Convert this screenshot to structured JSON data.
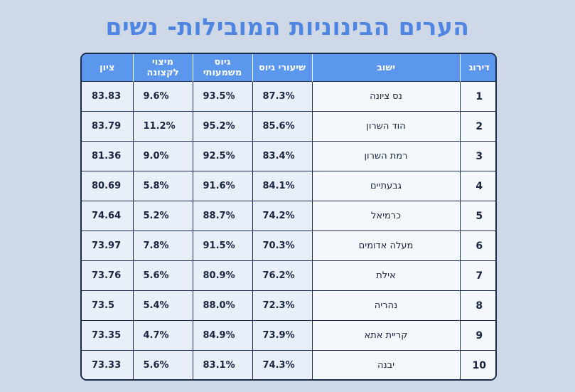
{
  "title": "הערים הבינוניות המובילות- נשים",
  "headers": {
    "rank": "דירוג",
    "city": "ישוב",
    "enlistment_rate": "שיעורי גיוס",
    "meaningful_service": "גיוס משמעותי",
    "max_potential": "מיצוי לקצונה",
    "score": "ציון"
  },
  "rows": [
    {
      "rank": "1",
      "city": "נס ציונה",
      "enlistment_rate": "87.3%",
      "meaningful_service": "93.5%",
      "max_potential": "9.6%",
      "score": "83.83"
    },
    {
      "rank": "2",
      "city": "הוד השרון",
      "enlistment_rate": "85.6%",
      "meaningful_service": "95.2%",
      "max_potential": "11.2%",
      "score": "83.79"
    },
    {
      "rank": "3",
      "city": "רמת השרון",
      "enlistment_rate": "83.4%",
      "meaningful_service": "92.5%",
      "max_potential": "9.0%",
      "score": "81.36"
    },
    {
      "rank": "4",
      "city": "גבעתיים",
      "enlistment_rate": "84.1%",
      "meaningful_service": "91.6%",
      "max_potential": "5.8%",
      "score": "80.69"
    },
    {
      "rank": "5",
      "city": "כרמיאל",
      "enlistment_rate": "74.2%",
      "meaningful_service": "88.7%",
      "max_potential": "5.2%",
      "score": "74.64"
    },
    {
      "rank": "6",
      "city": "מעלה אדומים",
      "enlistment_rate": "70.3%",
      "meaningful_service": "91.5%",
      "max_potential": "7.8%",
      "score": "73.97"
    },
    {
      "rank": "7",
      "city": "אילת",
      "enlistment_rate": "76.2%",
      "meaningful_service": "80.9%",
      "max_potential": "5.6%",
      "score": "73.76"
    },
    {
      "rank": "8",
      "city": "נהריה",
      "enlistment_rate": "72.3%",
      "meaningful_service": "88.0%",
      "max_potential": "5.4%",
      "score": "73.5"
    },
    {
      "rank": "9",
      "city": "קריית אתא",
      "enlistment_rate": "73.9%",
      "meaningful_service": "84.9%",
      "max_potential": "4.7%",
      "score": "73.35"
    },
    {
      "rank": "10",
      "city": "יבנה",
      "enlistment_rate": "74.3%",
      "meaningful_service": "83.1%",
      "max_potential": "5.6%",
      "score": "73.33"
    }
  ],
  "colors": {
    "title": "#4f86e3",
    "header_bg": "#5b97ec",
    "cell_bg": "#e9eff9",
    "border": "#1b2b4e",
    "background": "#cfd8e6"
  }
}
